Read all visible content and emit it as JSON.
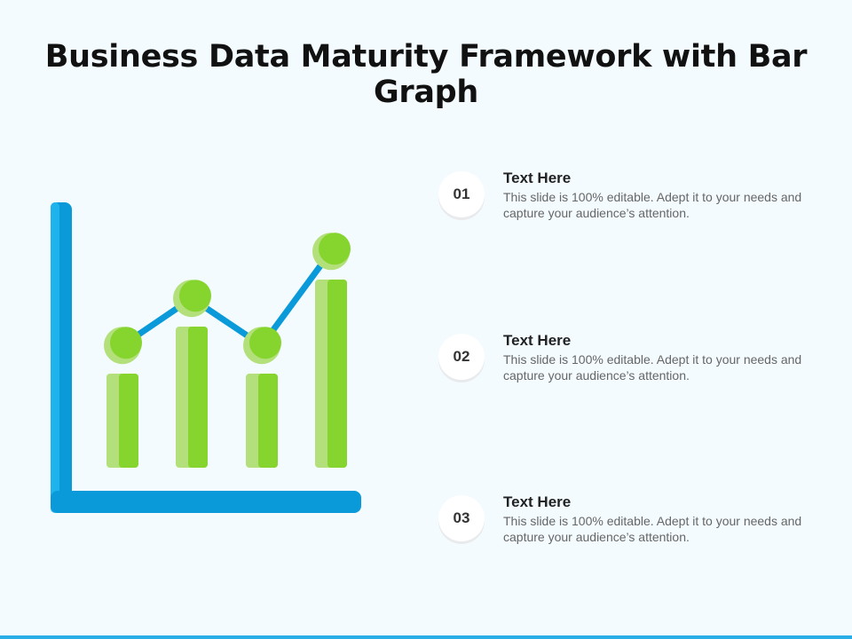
{
  "title": "Business Data Maturity Framework with Bar Graph",
  "colors": {
    "axis": "#0a9ad9",
    "axis_light": "#1fb3ee",
    "bar_dark": "#86d42e",
    "bar_light": "#b3e07a",
    "line": "#0a9ad9",
    "accent_line": "#29aee6"
  },
  "graphic": {
    "bars": [
      2,
      3,
      2,
      4
    ],
    "points": [
      2.6,
      3.6,
      2.6,
      4.6
    ]
  },
  "items": [
    {
      "number": "01",
      "title": "Text Here",
      "description": "This slide is 100% editable. Adept it to your needs and capture your audience’s attention."
    },
    {
      "number": "02",
      "title": "Text Here",
      "description": "This slide is 100% editable. Adept it to your needs and capture your audience’s attention."
    },
    {
      "number": "03",
      "title": "Text Here",
      "description": "This slide is 100% editable. Adept it to your needs and capture your audience’s attention."
    }
  ]
}
